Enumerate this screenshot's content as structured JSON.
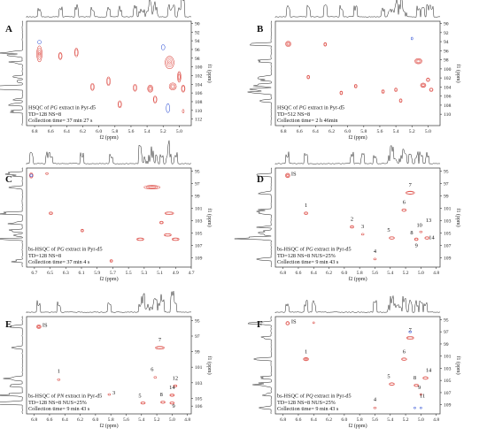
{
  "chart_data": [
    {
      "type": "scatter",
      "panel": "A",
      "info": [
        [
          {
            "t": "HSQC of "
          },
          {
            "t": "PG",
            "i": true
          },
          {
            "t": " extract in Pyr-d5"
          }
        ],
        [
          {
            "t": "TD=128 NS=8"
          }
        ],
        [
          {
            "t": "Collection time= 37 min 27 s"
          }
        ]
      ],
      "xlabel": "f2 (ppm)",
      "ylabel": "f1 (ppm)",
      "xlim": [
        6.9,
        4.85
      ],
      "ylim": [
        89.5,
        113.5
      ],
      "xticks": [
        6.8,
        6.6,
        6.4,
        6.2,
        6.0,
        5.8,
        5.6,
        5.4,
        5.2,
        5.0
      ],
      "yticks": [
        90,
        92,
        94,
        96,
        98,
        100,
        102,
        104,
        106,
        108,
        110,
        112
      ],
      "peaks": [
        {
          "x": 6.74,
          "y": 97.0,
          "rx": 3,
          "ry": 9,
          "n": 4
        },
        {
          "x": 6.48,
          "y": 97.5,
          "rx": 2,
          "ry": 4,
          "n": 2
        },
        {
          "x": 6.28,
          "y": 96.7,
          "rx": 2,
          "ry": 5,
          "n": 2
        },
        {
          "x": 6.08,
          "y": 104.6,
          "rx": 2,
          "ry": 4,
          "n": 2
        },
        {
          "x": 5.88,
          "y": 103.3,
          "rx": 2,
          "ry": 5,
          "n": 2
        },
        {
          "x": 5.74,
          "y": 108.6,
          "rx": 2,
          "ry": 4,
          "n": 2
        },
        {
          "x": 5.55,
          "y": 104.8,
          "rx": 2,
          "ry": 4,
          "n": 2
        },
        {
          "x": 5.36,
          "y": 105.0,
          "rx": 3,
          "ry": 4,
          "n": 3
        },
        {
          "x": 5.3,
          "y": 107.5,
          "rx": 2,
          "ry": 4,
          "n": 2
        },
        {
          "x": 5.12,
          "y": 99.0,
          "rx": 5,
          "ry": 7,
          "n": 4
        },
        {
          "x": 5.08,
          "y": 104.5,
          "rx": 4,
          "ry": 4,
          "n": 3
        },
        {
          "x": 5.0,
          "y": 102.3,
          "rx": 2,
          "ry": 6,
          "n": 3
        },
        {
          "x": 4.95,
          "y": 105.0,
          "rx": 2,
          "ry": 4,
          "n": 2
        },
        {
          "x": 4.95,
          "y": 110.2,
          "rx": 1,
          "ry": 2,
          "n": 1
        }
      ],
      "negative": [
        {
          "x": 6.74,
          "y": 94.3,
          "rx": 2,
          "ry": 2
        },
        {
          "x": 5.2,
          "y": 95.5,
          "rx": 2,
          "ry": 3
        },
        {
          "x": 5.14,
          "y": 109.5,
          "rx": 2,
          "ry": 5
        }
      ],
      "labels": []
    },
    {
      "type": "scatter",
      "panel": "B",
      "info": [
        [
          {
            "t": "HSQC of "
          },
          {
            "t": "PG",
            "i": true
          },
          {
            "t": " extract in Pyr-d5"
          }
        ],
        [
          {
            "t": "TD=512 NS=8"
          }
        ],
        [
          {
            "t": "Collection time= 2 h 46min"
          }
        ]
      ],
      "xlabel": "f2 (ppm)",
      "ylabel": "f1 (ppm)",
      "xlim": [
        6.9,
        4.85
      ],
      "ylim": [
        89.5,
        112.5
      ],
      "xticks": [
        6.8,
        6.6,
        6.4,
        6.2,
        6.0,
        5.8,
        5.6,
        5.4,
        5.2,
        5.0
      ],
      "yticks": [
        90,
        92,
        94,
        96,
        98,
        100,
        102,
        104,
        106,
        108,
        110
      ],
      "peaks": [
        {
          "x": 6.74,
          "y": 94.5,
          "rx": 3,
          "ry": 3,
          "n": 3
        },
        {
          "x": 6.49,
          "y": 101.8,
          "rx": 1.5,
          "ry": 2,
          "n": 2
        },
        {
          "x": 6.28,
          "y": 94.6,
          "rx": 1.5,
          "ry": 2,
          "n": 2
        },
        {
          "x": 6.08,
          "y": 105.3,
          "rx": 1.5,
          "ry": 2,
          "n": 2
        },
        {
          "x": 5.9,
          "y": 103.8,
          "rx": 1.5,
          "ry": 2,
          "n": 2
        },
        {
          "x": 5.56,
          "y": 105.0,
          "rx": 1.5,
          "ry": 2,
          "n": 2
        },
        {
          "x": 5.4,
          "y": 104.6,
          "rx": 1.5,
          "ry": 2,
          "n": 2
        },
        {
          "x": 5.34,
          "y": 107.0,
          "rx": 1.5,
          "ry": 2,
          "n": 2
        },
        {
          "x": 5.12,
          "y": 98.3,
          "rx": 4,
          "ry": 3,
          "n": 3
        },
        {
          "x": 5.06,
          "y": 103.6,
          "rx": 3,
          "ry": 2.5,
          "n": 3
        },
        {
          "x": 5.0,
          "y": 102.4,
          "rx": 2,
          "ry": 2,
          "n": 2
        },
        {
          "x": 4.96,
          "y": 104.6,
          "rx": 2,
          "ry": 2,
          "n": 2
        }
      ],
      "negative": [
        {
          "x": 5.2,
          "y": 93.3,
          "rx": 1,
          "ry": 1.5
        }
      ],
      "labels": []
    },
    {
      "type": "scatter",
      "panel": "C",
      "info": [
        [
          {
            "t": "bs-HSQC of "
          },
          {
            "t": "PG",
            "i": true
          },
          {
            "t": " extract in Pyr-d5"
          }
        ],
        [
          {
            "t": "TD=128 NS=8"
          }
        ],
        [
          {
            "t": "Collection time= 37 min 4 s"
          }
        ]
      ],
      "xlabel": "f2 (ppm)",
      "ylabel": "f1 (ppm)",
      "xlim": [
        6.8,
        4.7
      ],
      "ylim": [
        94.5,
        110.5
      ],
      "xticks": [
        6.7,
        6.5,
        6.3,
        6.1,
        5.9,
        5.7,
        5.5,
        5.3,
        5.1,
        4.9,
        4.7
      ],
      "yticks": [
        95,
        97,
        99,
        101,
        103,
        105,
        107,
        109
      ],
      "peaks": [
        {
          "x": 6.74,
          "y": 95.7,
          "rx": 2,
          "ry": 3,
          "n": 2
        },
        {
          "x": 6.54,
          "y": 95.4,
          "rx": 1.5,
          "ry": 1,
          "n": 1
        },
        {
          "x": 6.49,
          "y": 101.8,
          "rx": 2,
          "ry": 1.5,
          "n": 2
        },
        {
          "x": 6.09,
          "y": 104.6,
          "rx": 1.5,
          "ry": 1.5,
          "n": 2
        },
        {
          "x": 5.72,
          "y": 109.5,
          "rx": 1.5,
          "ry": 1.5,
          "n": 2
        },
        {
          "x": 5.35,
          "y": 106.0,
          "rx": 4,
          "ry": 1.5,
          "n": 2
        },
        {
          "x": 5.2,
          "y": 97.6,
          "rx": 9,
          "ry": 2,
          "n": 3
        },
        {
          "x": 5.08,
          "y": 103.3,
          "rx": 2,
          "ry": 1.5,
          "n": 2
        },
        {
          "x": 4.98,
          "y": 101.8,
          "rx": 5,
          "ry": 1.5,
          "n": 2
        },
        {
          "x": 5.0,
          "y": 105.3,
          "rx": 4,
          "ry": 1.5,
          "n": 2
        },
        {
          "x": 4.9,
          "y": 106.0,
          "rx": 4,
          "ry": 1.5,
          "n": 2
        }
      ],
      "negative": [
        {
          "x": 6.74,
          "y": 95.7,
          "rx": 1.5,
          "ry": 1.5
        }
      ],
      "labels": []
    },
    {
      "type": "scatter",
      "panel": "D",
      "info": [
        [
          {
            "t": "bs-HSQC of "
          },
          {
            "t": "PG",
            "i": true
          },
          {
            "t": " extract in Pyr-d5"
          }
        ],
        [
          {
            "t": "TD=128 NS=8 NUS=25%"
          }
        ],
        [
          {
            "t": "Collection time= 9 min 43 s"
          }
        ]
      ],
      "xlabel": "f2 (ppm)",
      "ylabel": "f1 (ppm)",
      "xlim": [
        6.9,
        4.75
      ],
      "ylim": [
        94.5,
        110.5
      ],
      "xticks": [
        6.8,
        6.6,
        6.4,
        6.2,
        6.0,
        5.8,
        5.6,
        5.4,
        5.2,
        5.0,
        4.8
      ],
      "yticks": [
        95,
        97,
        99,
        101,
        103,
        105,
        107,
        109
      ],
      "peaks": [
        {
          "x": 6.74,
          "y": 95.7,
          "rx": 2.5,
          "ry": 2.5,
          "n": 3
        },
        {
          "x": 6.5,
          "y": 101.8,
          "rx": 2,
          "ry": 1.5,
          "n": 2
        },
        {
          "x": 5.9,
          "y": 104.0,
          "rx": 2,
          "ry": 1.5,
          "n": 2
        },
        {
          "x": 5.76,
          "y": 105.2,
          "rx": 1.5,
          "ry": 1,
          "n": 1
        },
        {
          "x": 5.6,
          "y": 109.2,
          "rx": 1.5,
          "ry": 1,
          "n": 1
        },
        {
          "x": 5.38,
          "y": 105.8,
          "rx": 3,
          "ry": 1.5,
          "n": 2
        },
        {
          "x": 5.22,
          "y": 101.3,
          "rx": 2.5,
          "ry": 1.5,
          "n": 2
        },
        {
          "x": 5.14,
          "y": 98.5,
          "rx": 5,
          "ry": 1.8,
          "n": 2
        },
        {
          "x": 5.06,
          "y": 106.0,
          "rx": 2,
          "ry": 1.5,
          "n": 2
        },
        {
          "x": 5.0,
          "y": 104.8,
          "rx": 1.5,
          "ry": 1,
          "n": 1
        },
        {
          "x": 4.92,
          "y": 105.8,
          "rx": 2.5,
          "ry": 1.5,
          "n": 2
        }
      ],
      "negative": [],
      "labels": [
        {
          "text": "IS",
          "x": 6.66,
          "y": 95.7
        },
        {
          "text": "1",
          "x": 6.5,
          "y": 100.8
        },
        {
          "text": "2",
          "x": 5.9,
          "y": 103.0
        },
        {
          "text": "3",
          "x": 5.76,
          "y": 104.2
        },
        {
          "text": "4",
          "x": 5.6,
          "y": 108.2
        },
        {
          "text": "5",
          "x": 5.42,
          "y": 104.8
        },
        {
          "text": "6",
          "x": 5.22,
          "y": 100.3
        },
        {
          "text": "7",
          "x": 5.14,
          "y": 97.5
        },
        {
          "text": "8",
          "x": 5.12,
          "y": 105.2
        },
        {
          "text": "9",
          "x": 5.06,
          "y": 107.3
        },
        {
          "text": "10",
          "x": 5.02,
          "y": 104.0
        },
        {
          "text": "13",
          "x": 4.9,
          "y": 103.2
        },
        {
          "text": "14",
          "x": 4.86,
          "y": 106.0
        }
      ]
    },
    {
      "type": "scatter",
      "panel": "E",
      "info": [
        [
          {
            "t": "bs-HSQC of "
          },
          {
            "t": "PN",
            "i": true
          },
          {
            "t": " extract in Pyr-d5"
          }
        ],
        [
          {
            "t": "TD=128 NS=8 NUS=25%"
          }
        ],
        [
          {
            "t": "Collection time= 9 min 43 s"
          }
        ]
      ],
      "xlabel": "f2 (ppm)",
      "ylabel": "f1 (ppm)",
      "xlim": [
        6.9,
        4.75
      ],
      "ylim": [
        94.5,
        107.0
      ],
      "xticks": [
        6.8,
        6.6,
        6.4,
        6.2,
        6.0,
        5.8,
        5.6,
        5.4,
        5.2,
        5.0,
        4.8
      ],
      "yticks": [
        95,
        97,
        99,
        101,
        103,
        105,
        106
      ],
      "peaks": [
        {
          "x": 6.74,
          "y": 95.8,
          "rx": 2.5,
          "ry": 2,
          "n": 3
        },
        {
          "x": 6.48,
          "y": 102.6,
          "rx": 1.5,
          "ry": 1,
          "n": 1
        },
        {
          "x": 5.82,
          "y": 104.5,
          "rx": 1.5,
          "ry": 1,
          "n": 1
        },
        {
          "x": 5.38,
          "y": 105.6,
          "rx": 2.5,
          "ry": 1.3,
          "n": 2
        },
        {
          "x": 5.22,
          "y": 102.3,
          "rx": 1.5,
          "ry": 1,
          "n": 1
        },
        {
          "x": 5.16,
          "y": 98.5,
          "rx": 5,
          "ry": 1.5,
          "n": 2
        },
        {
          "x": 5.12,
          "y": 105.5,
          "rx": 2.5,
          "ry": 1.3,
          "n": 2
        },
        {
          "x": 5.0,
          "y": 104.6,
          "rx": 2.5,
          "ry": 1.3,
          "n": 2
        },
        {
          "x": 5.0,
          "y": 105.6,
          "rx": 2.5,
          "ry": 1.3,
          "n": 2
        },
        {
          "x": 4.96,
          "y": 103.4,
          "rx": 2,
          "ry": 1.2,
          "n": 2
        }
      ],
      "negative": [],
      "labels": [
        {
          "text": "IS",
          "x": 6.66,
          "y": 95.8
        },
        {
          "text": "1",
          "x": 6.48,
          "y": 101.7
        },
        {
          "text": "3",
          "x": 5.76,
          "y": 104.5
        },
        {
          "text": "5",
          "x": 5.42,
          "y": 104.9
        },
        {
          "text": "6",
          "x": 5.26,
          "y": 101.5
        },
        {
          "text": "7",
          "x": 5.16,
          "y": 97.7
        },
        {
          "text": "8",
          "x": 5.14,
          "y": 104.7
        },
        {
          "text": "9",
          "x": 4.98,
          "y": 106.2
        },
        {
          "text": "12",
          "x": 4.96,
          "y": 102.6
        },
        {
          "text": "14",
          "x": 5.0,
          "y": 103.8
        }
      ]
    },
    {
      "type": "scatter",
      "panel": "F",
      "info": [
        [
          {
            "t": "bs-HSQC of "
          },
          {
            "t": "PQ",
            "i": true
          },
          {
            "t": " extract in Pyr-d5"
          }
        ],
        [
          {
            "t": "TD=128 NS=8 NUS=25%"
          }
        ],
        [
          {
            "t": "Collection time= 9 min 43 s"
          }
        ]
      ],
      "xlabel": "f2 (ppm)",
      "ylabel": "f1 (ppm)",
      "xlim": [
        6.9,
        4.75
      ],
      "ylim": [
        94.5,
        110.5
      ],
      "xticks": [
        6.8,
        6.6,
        6.4,
        6.2,
        6.0,
        5.8,
        5.6,
        5.4,
        5.2,
        5.0,
        4.8
      ],
      "yticks": [
        95,
        97,
        99,
        101,
        103,
        105,
        107,
        109
      ],
      "peaks": [
        {
          "x": 6.74,
          "y": 95.6,
          "rx": 2,
          "ry": 2,
          "n": 2
        },
        {
          "x": 6.5,
          "y": 101.5,
          "rx": 3,
          "ry": 1.8,
          "n": 3
        },
        {
          "x": 6.4,
          "y": 95.5,
          "rx": 1,
          "ry": 1,
          "n": 1
        },
        {
          "x": 5.6,
          "y": 109.5,
          "rx": 1.5,
          "ry": 1,
          "n": 1
        },
        {
          "x": 5.38,
          "y": 105.6,
          "rx": 3,
          "ry": 1.5,
          "n": 2
        },
        {
          "x": 5.22,
          "y": 101.5,
          "rx": 3,
          "ry": 1.5,
          "n": 2
        },
        {
          "x": 5.14,
          "y": 98.0,
          "rx": 4,
          "ry": 1.5,
          "n": 2
        },
        {
          "x": 5.06,
          "y": 105.8,
          "rx": 2.5,
          "ry": 1.3,
          "n": 2
        },
        {
          "x": 5.0,
          "y": 107.3,
          "rx": 1.2,
          "ry": 1,
          "n": 1
        },
        {
          "x": 4.94,
          "y": 104.6,
          "rx": 3,
          "ry": 1.5,
          "n": 2
        }
      ],
      "negative": [
        {
          "x": 5.14,
          "y": 97.0,
          "rx": 1.5,
          "ry": 1
        },
        {
          "x": 5.08,
          "y": 109.5,
          "rx": 1,
          "ry": 1
        },
        {
          "x": 5.0,
          "y": 109.5,
          "rx": 1,
          "ry": 1
        }
      ],
      "labels": [
        {
          "text": "IS",
          "x": 6.66,
          "y": 95.6
        },
        {
          "text": "1",
          "x": 6.5,
          "y": 100.5
        },
        {
          "text": "4",
          "x": 5.6,
          "y": 108.4
        },
        {
          "text": "5",
          "x": 5.42,
          "y": 104.6
        },
        {
          "text": "6",
          "x": 5.22,
          "y": 100.5
        },
        {
          "text": "7",
          "x": 5.14,
          "y": 97.0
        },
        {
          "text": "8",
          "x": 5.08,
          "y": 104.8
        },
        {
          "text": "9",
          "x": 5.02,
          "y": 106.4
        },
        {
          "text": "11",
          "x": 4.98,
          "y": 107.8
        },
        {
          "text": "14",
          "x": 4.9,
          "y": 103.6
        }
      ]
    }
  ]
}
